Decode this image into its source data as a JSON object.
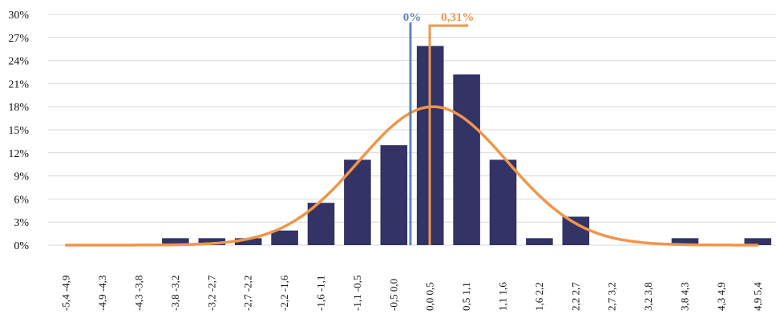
{
  "chart_data": {
    "type": "bar",
    "title": "",
    "xlabel": "",
    "ylabel": "",
    "ylim": [
      0,
      30
    ],
    "y_ticks": [
      "0%",
      "3%",
      "6%",
      "9%",
      "12%",
      "15%",
      "18%",
      "21%",
      "24%",
      "27%",
      "30%"
    ],
    "y_tick_values": [
      0,
      3,
      6,
      9,
      12,
      15,
      18,
      21,
      24,
      27,
      30
    ],
    "grid": "horizontal",
    "categories": [
      "-5,4 -4,9",
      "-4,9 -4,3",
      "-4,3 -3,8",
      "-3,8 -3,2",
      "-3,2 -2,7",
      "-2,7 -2,2",
      "-2,2 -1,6",
      "-1,6 -1,1",
      "-1,1 -0,5",
      "-0,5 0,0",
      "0,0 0,5",
      "0,5 1,1",
      "1,1 1,6",
      "1,6 2,2",
      "2,2 2,7",
      "2,7 3,2",
      "3,2 3,8",
      "3,8 4,3",
      "4,3 4,9",
      "4,9 5,4"
    ],
    "series": [
      {
        "type": "bar",
        "color": "#333366",
        "values": [
          0,
          0,
          0,
          0.9,
          0.9,
          0.9,
          1.9,
          5.5,
          11.1,
          13.0,
          25.9,
          22.2,
          11.1,
          0.9,
          3.7,
          0,
          0,
          0.9,
          0,
          0.9
        ]
      },
      {
        "type": "line",
        "curve": "normal-distribution",
        "color": "#f0964a",
        "mean": 0.31,
        "stdev": 1.1,
        "peak": 18
      }
    ],
    "annotations": [
      {
        "label": "0%",
        "x": 0,
        "color": "#5b86c0"
      },
      {
        "label": "0,31%",
        "x": 0.31,
        "color": "#f0964a"
      }
    ]
  }
}
